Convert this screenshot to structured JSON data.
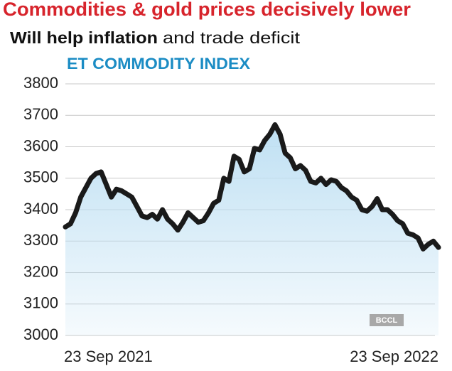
{
  "chart_data": {
    "type": "line",
    "title": "Commodities & gold prices decisively lower",
    "subtitle_bold": "Will help inflation",
    "subtitle_rest": "and trade deficit",
    "chart_label": "ET COMMODITY INDEX",
    "credit": "BCCL",
    "categories": [
      "23 Sep 2021",
      null,
      null,
      null,
      null,
      null,
      null,
      null,
      null,
      null,
      null,
      null,
      null,
      null,
      null,
      null,
      null,
      null,
      null,
      null,
      null,
      null,
      null,
      null,
      null,
      null,
      null,
      null,
      null,
      null,
      null,
      null,
      null,
      null,
      null,
      null,
      null,
      null,
      null,
      null,
      null,
      null,
      null,
      null,
      null,
      null,
      null,
      null,
      null,
      null,
      null,
      null,
      null,
      null,
      null,
      null,
      null,
      null,
      null,
      null,
      null,
      null,
      null,
      null,
      null,
      null,
      null,
      null,
      null,
      null,
      null,
      null,
      null,
      "23 Sep 2022"
    ],
    "series": [
      {
        "name": "ET Commodity Index",
        "color": "#1a1a1a",
        "values": [
          3345,
          3355,
          3390,
          3440,
          3470,
          3500,
          3515,
          3520,
          3480,
          3440,
          3465,
          3460,
          3450,
          3440,
          3410,
          3380,
          3375,
          3385,
          3370,
          3400,
          3370,
          3355,
          3335,
          3360,
          3390,
          3375,
          3360,
          3365,
          3390,
          3420,
          3430,
          3500,
          3490,
          3570,
          3560,
          3520,
          3530,
          3595,
          3590,
          3620,
          3640,
          3670,
          3640,
          3580,
          3565,
          3530,
          3540,
          3525,
          3490,
          3485,
          3500,
          3480,
          3495,
          3490,
          3470,
          3460,
          3440,
          3430,
          3400,
          3395,
          3410,
          3435,
          3400,
          3400,
          3385,
          3365,
          3355,
          3325,
          3320,
          3310,
          3275,
          3290,
          3300,
          3280
        ]
      }
    ],
    "area_color": "#bfe0f3",
    "ylim": [
      3000,
      3800
    ],
    "yticks": [
      3000,
      3100,
      3200,
      3300,
      3400,
      3500,
      3600,
      3700,
      3800
    ],
    "grid": true
  }
}
